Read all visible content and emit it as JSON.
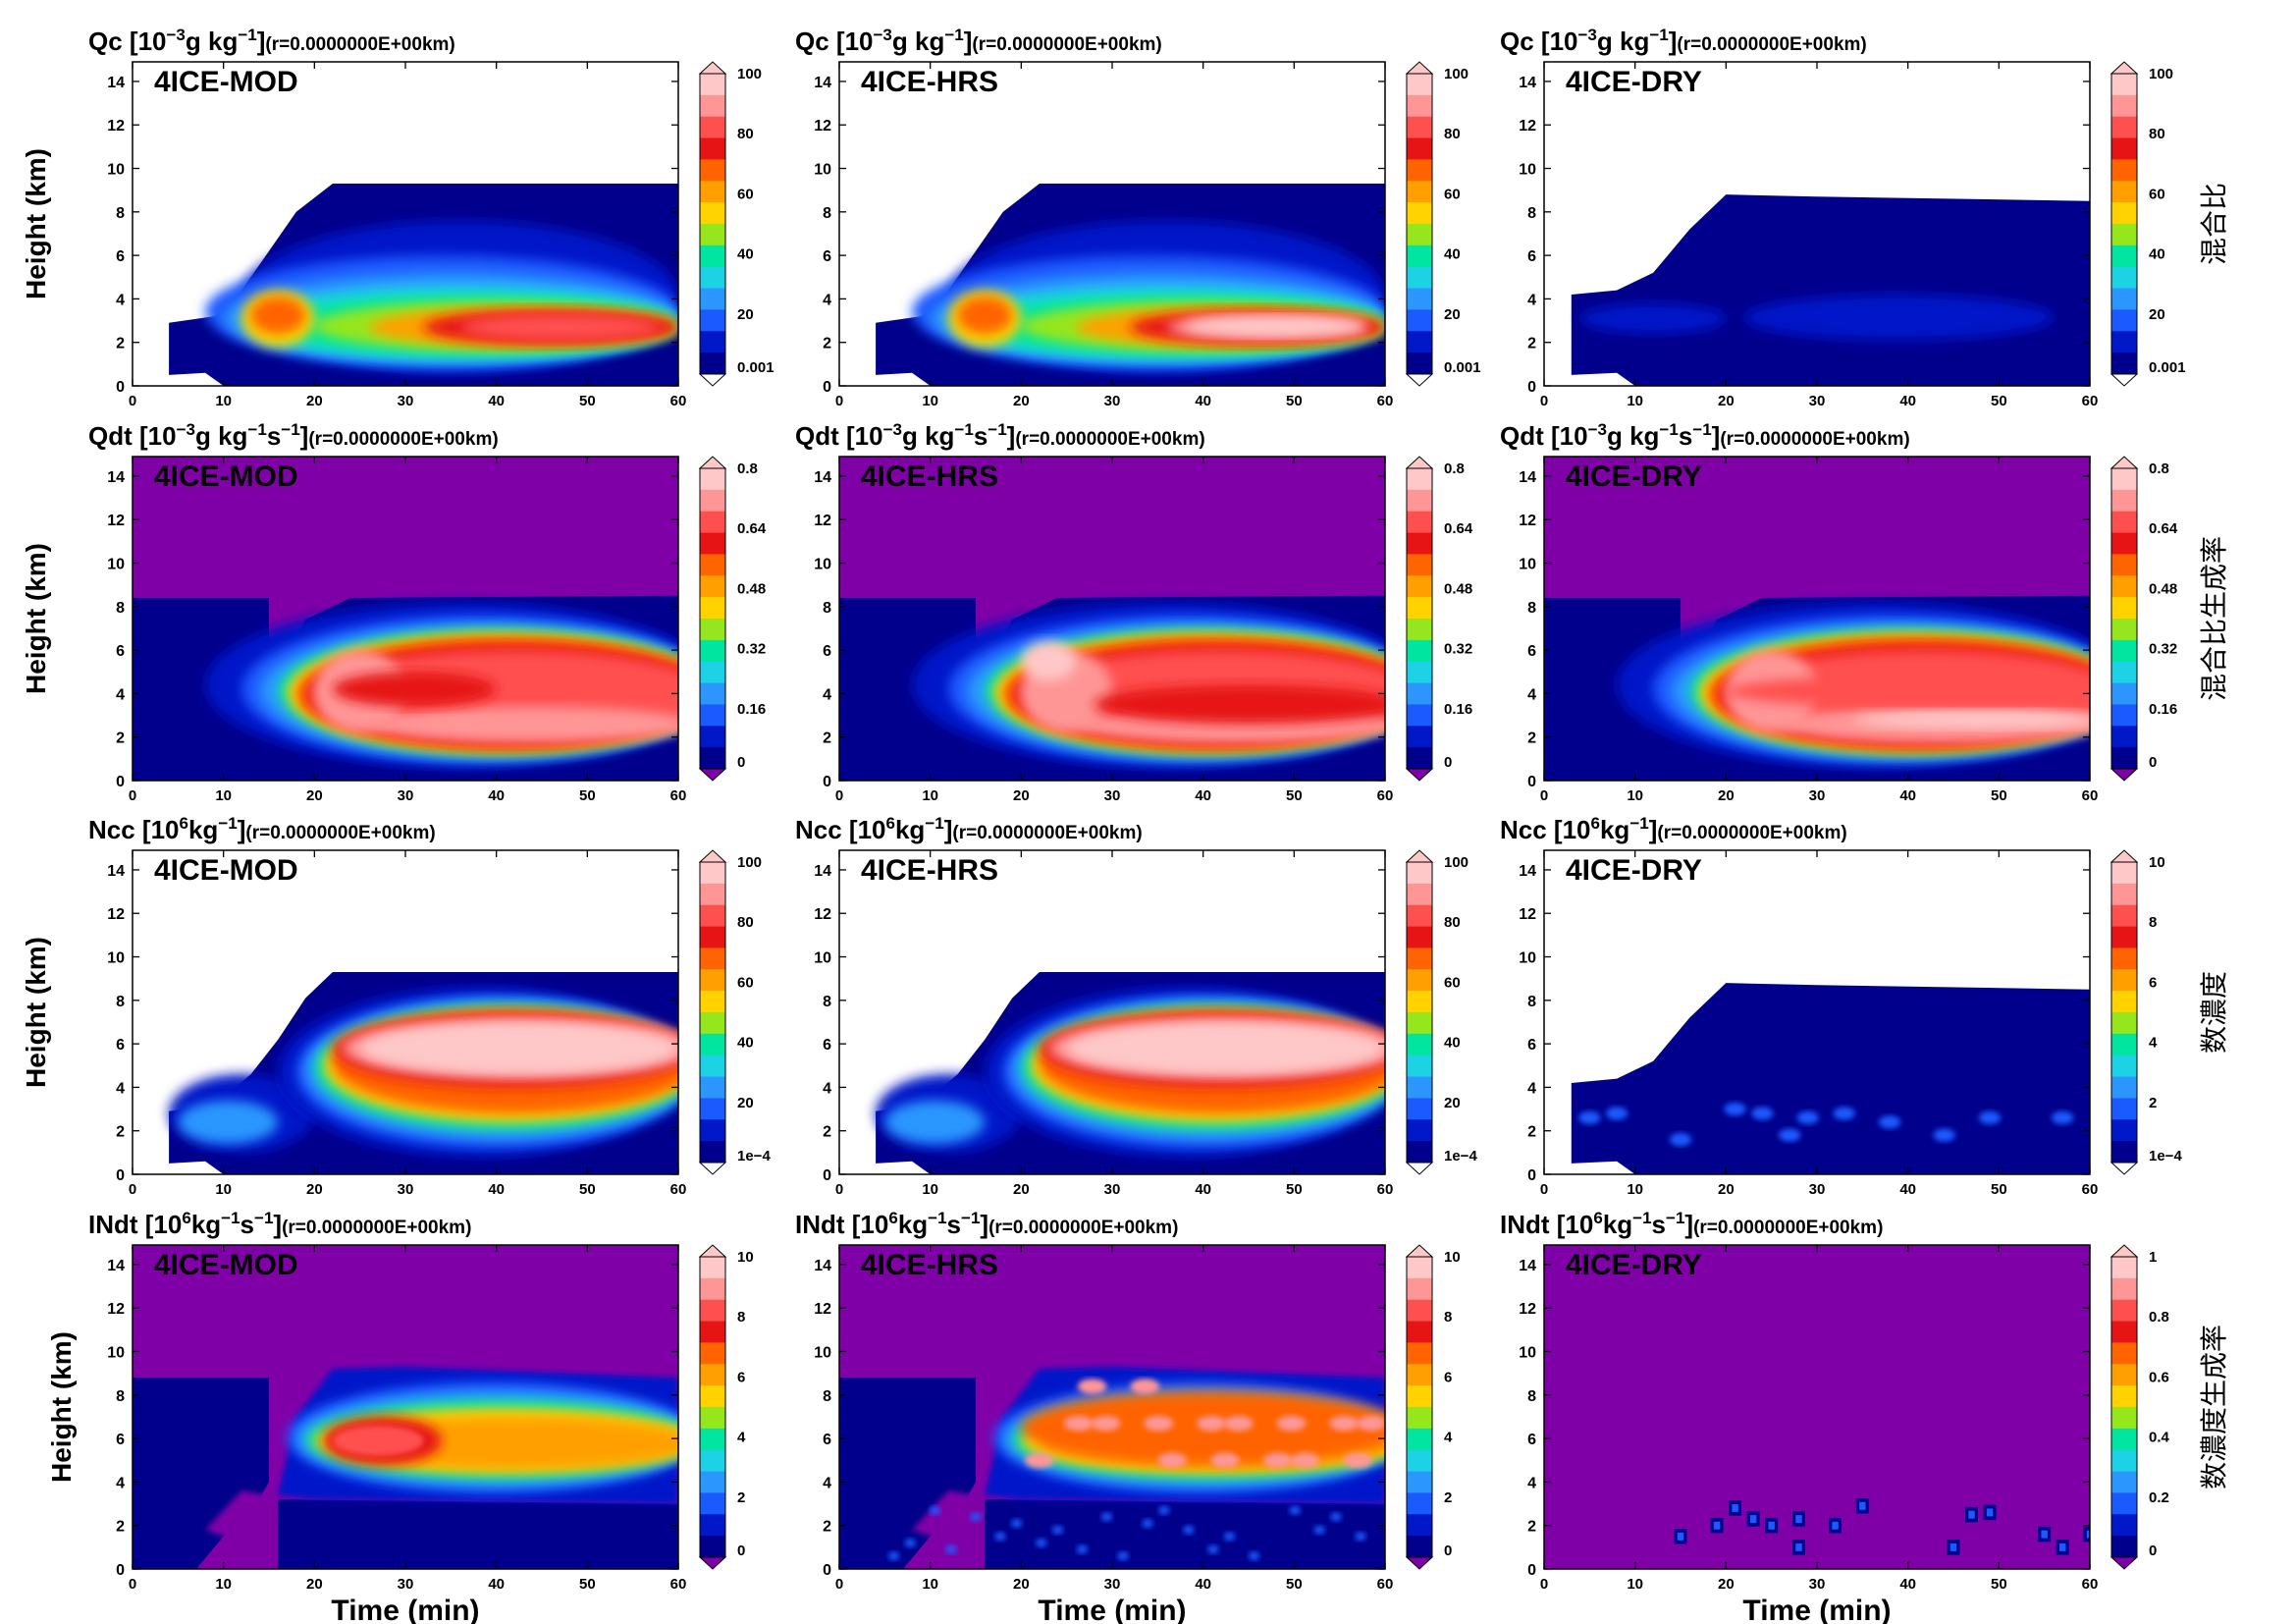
{
  "figure": {
    "y_label": "Height (km)",
    "x_label": "Time (min)",
    "x_ticks": [
      "0",
      "10",
      "20",
      "30",
      "40",
      "50",
      "60"
    ],
    "y_ticks": [
      "0",
      "2",
      "4",
      "6",
      "8",
      "10",
      "12",
      "14"
    ],
    "experiments": [
      "4ICE-MOD",
      "4ICE-HRS",
      "4ICE-DRY"
    ],
    "palette": [
      "#00008c",
      "#0018c8",
      "#1a5aff",
      "#2c96ff",
      "#1ed2e6",
      "#00e6a0",
      "#96e61e",
      "#ffd200",
      "#ffa000",
      "#ff6400",
      "#e61414",
      "#ff5050",
      "#ff9696",
      "#ffc8c8"
    ],
    "background_purple": "#8000a8",
    "rows": [
      {
        "title_main": "Qc [10",
        "title_exp": "−3",
        "title_tail": "g kg",
        "title_exp2": "−1",
        "title_tail2": "]",
        "title_suffix": "(r=0.0000000E+00km)",
        "side_label": "混合比",
        "colorbars": [
          [
            "100",
            "80",
            "60",
            "40",
            "20",
            "0.001"
          ],
          [
            "100",
            "80",
            "60",
            "40",
            "20",
            "0.001"
          ],
          [
            "100",
            "80",
            "60",
            "40",
            "20",
            "0.001"
          ]
        ]
      },
      {
        "title_main": "Qdt [10",
        "title_exp": "−3",
        "title_tail": "g kg",
        "title_exp2": "−1",
        "title_tail2": "s",
        "title_exp3": "−1",
        "title_tail3": "]",
        "title_suffix": "(r=0.0000000E+00km)",
        "side_label": "混合比生成率",
        "colorbars": [
          [
            "0.8",
            "0.64",
            "0.48",
            "0.32",
            "0.16",
            "0"
          ],
          [
            "0.8",
            "0.64",
            "0.48",
            "0.32",
            "0.16",
            "0"
          ],
          [
            "0.8",
            "0.64",
            "0.48",
            "0.32",
            "0.16",
            "0"
          ]
        ]
      },
      {
        "title_main": "Ncc [10",
        "title_exp": "6",
        "title_tail": "kg",
        "title_exp2": "−1",
        "title_tail2": "]",
        "title_suffix": "(r=0.0000000E+00km)",
        "side_label": "数濃度",
        "colorbars": [
          [
            "100",
            "80",
            "60",
            "40",
            "20",
            "1e−4"
          ],
          [
            "100",
            "80",
            "60",
            "40",
            "20",
            "1e−4"
          ],
          [
            "10",
            "8",
            "6",
            "4",
            "2",
            "1e−4"
          ]
        ]
      },
      {
        "title_main": "INdt [10",
        "title_exp": "6",
        "title_tail": "kg",
        "title_exp2": "−1",
        "title_tail2": "s",
        "title_exp3": "−1",
        "title_tail3": "]",
        "title_suffix": "(r=0.0000000E+00km)",
        "side_label": "数濃度生成率",
        "colorbars": [
          [
            "10",
            "8",
            "6",
            "4",
            "2",
            "0"
          ],
          [
            "10",
            "8",
            "6",
            "4",
            "2",
            "0"
          ],
          [
            "1",
            "0.8",
            "0.6",
            "0.4",
            "0.2",
            "0"
          ]
        ]
      }
    ]
  },
  "chart_data": {
    "type": "heatmap",
    "layout": "4 rows x 3 columns of time-height contour plots",
    "xlabel": "Time (min)",
    "ylabel": "Height (km)",
    "xlim": [
      0,
      60
    ],
    "ylim": [
      0,
      15
    ],
    "columns": [
      "4ICE-MOD",
      "4ICE-HRS",
      "4ICE-DRY"
    ],
    "variables": [
      "Qc",
      "Qdt",
      "Ncc",
      "INdt"
    ]
  }
}
